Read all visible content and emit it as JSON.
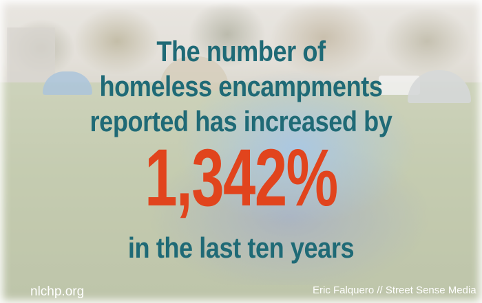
{
  "headline": {
    "line1": "The number of",
    "line2": "homeless encampments",
    "line3": "reported has increased by",
    "stat": "1,342%",
    "line4": "in the last ten years"
  },
  "footer": {
    "source": "nlchp.org",
    "credit": "Eric Falquero // Street Sense Media"
  },
  "colors": {
    "headline_text": "#1f6a76",
    "stat_text": "#e1441d",
    "footer_text": "#ffffff"
  }
}
